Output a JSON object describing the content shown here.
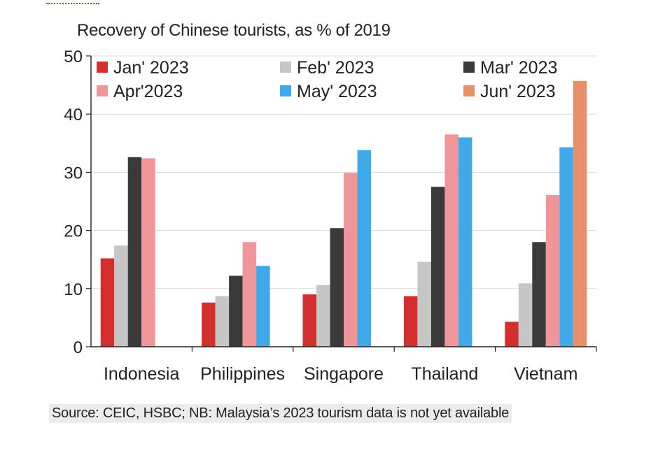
{
  "chart_data": {
    "type": "bar",
    "title": "Recovery of Chinese  tourists,  as % of 2019",
    "categories": [
      "Indonesia",
      "Philippines",
      "Singapore",
      "Thailand",
      "Vietnam"
    ],
    "ylim": [
      0,
      50
    ],
    "yticks": [
      "0",
      "10",
      "20",
      "30",
      "40",
      "50"
    ],
    "xlabel": "",
    "ylabel": "",
    "grid": true,
    "legend_position": "top",
    "series": [
      {
        "name": "Jan' 2023",
        "color": "#d32f2f",
        "values": [
          15.2,
          7.6,
          9.0,
          8.7,
          4.3
        ]
      },
      {
        "name": "Feb' 2023",
        "color": "#c6c6c6",
        "values": [
          17.4,
          8.7,
          10.6,
          14.6,
          10.9
        ]
      },
      {
        "name": "Mar' 2023",
        "color": "#3a3a3a",
        "values": [
          32.6,
          12.2,
          20.4,
          27.5,
          18.0
        ]
      },
      {
        "name": "Apr'2023",
        "color": "#f0959a",
        "values": [
          32.4,
          18.0,
          29.9,
          36.5,
          26.1
        ]
      },
      {
        "name": "May' 2023",
        "color": "#3fa9ea",
        "values": [
          null,
          13.9,
          33.8,
          36.0,
          34.3
        ]
      },
      {
        "name": "Jun' 2023",
        "color": "#e8906a",
        "values": [
          null,
          null,
          null,
          null,
          45.7
        ]
      }
    ]
  },
  "source": "Source: CEIC, HSBC; NB: Malaysia’s 2023 tourism data is not yet available"
}
